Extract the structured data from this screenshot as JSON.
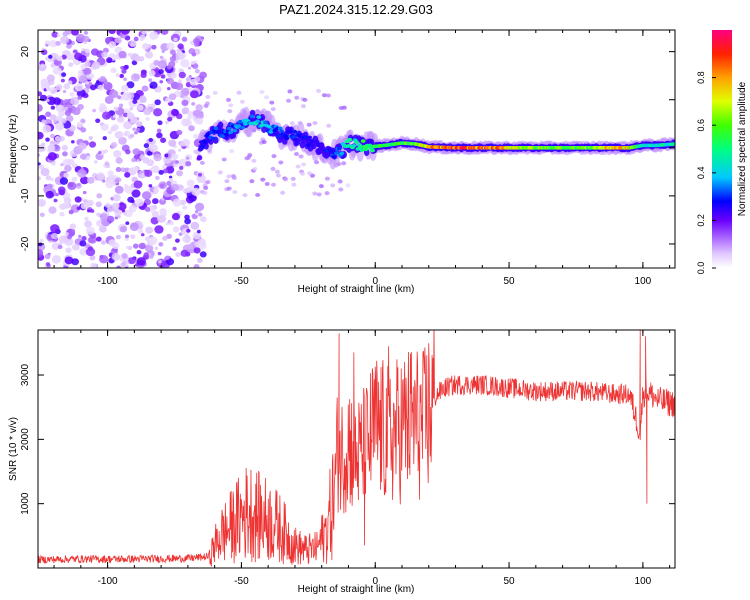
{
  "figure_title": "PAZ1.2024.315.12.29.G03",
  "chart_data": [
    {
      "type": "heatmap",
      "xlabel": "Height of straight line (km)",
      "ylabel": "Frequency (Hz)",
      "xlim": [
        -126,
        112
      ],
      "ylim": [
        -25,
        24.5
      ],
      "xticks": [
        -100,
        -50,
        0,
        50,
        100
      ],
      "yticks": [
        -20,
        -10,
        0,
        10,
        20
      ],
      "colorbar": {
        "label": "Normalized spectral amplitude",
        "range": [
          0,
          1
        ],
        "ticks": [
          0.0,
          0.2,
          0.4,
          0.6,
          0.8
        ]
      },
      "ridge": {
        "x": [
          -65,
          -60,
          -55,
          -50,
          -45,
          -40,
          -35,
          -30,
          -25,
          -20,
          -15,
          -10,
          -5,
          0,
          5,
          10,
          15,
          20,
          30,
          40,
          50,
          60,
          70,
          80,
          90,
          95,
          100,
          105,
          112
        ],
        "y": [
          1.0,
          3.0,
          3.5,
          5.0,
          6.0,
          4.5,
          3.0,
          2.5,
          1.5,
          -0.5,
          -1.5,
          0.8,
          0.5,
          0.3,
          0.6,
          1.0,
          0.8,
          0.2,
          0.0,
          0.0,
          0.0,
          0.0,
          0.0,
          0.0,
          0.0,
          0.0,
          0.5,
          0.5,
          0.8
        ],
        "amplitude": [
          0.25,
          0.3,
          0.3,
          0.35,
          0.4,
          0.35,
          0.3,
          0.3,
          0.25,
          0.25,
          0.3,
          0.45,
          0.5,
          0.55,
          0.55,
          0.55,
          0.6,
          0.75,
          0.85,
          0.85,
          0.75,
          0.6,
          0.6,
          0.6,
          0.8,
          0.7,
          0.4,
          0.45,
          0.45
        ]
      },
      "noise_region_x": [
        -126,
        -66
      ]
    },
    {
      "type": "line",
      "xlabel": "Height of straight line (km)",
      "ylabel": "SNR (10 * v/v)",
      "xlim": [
        -126,
        112
      ],
      "ylim": [
        0,
        3700
      ],
      "xticks": [
        -100,
        -50,
        0,
        50,
        100
      ],
      "yticks": [
        1000,
        2000,
        3000
      ],
      "color": "#ee3333",
      "series": [
        {
          "x": [
            -126,
            -110,
            -90,
            -70,
            -62,
            -58,
            -55,
            -50,
            -47,
            -44,
            -40,
            -35,
            -30,
            -26,
            -22,
            -18,
            -16,
            -15,
            -14,
            -13,
            -10,
            -7,
            -5,
            -3,
            0,
            3,
            6,
            10,
            14,
            18,
            20,
            23,
            26,
            30,
            40,
            50,
            60,
            70,
            80,
            90,
            95,
            97,
            99,
            100,
            101,
            103,
            106,
            112
          ],
          "y": [
            130,
            140,
            140,
            150,
            180,
            500,
            600,
            800,
            900,
            800,
            750,
            600,
            350,
            280,
            300,
            600,
            1000,
            1350,
            1900,
            1700,
            2000,
            1700,
            1800,
            1900,
            2200,
            2100,
            2050,
            2200,
            2300,
            2200,
            2450,
            2700,
            2800,
            2850,
            2850,
            2800,
            2750,
            2750,
            2750,
            2700,
            2700,
            2400,
            2100,
            2700,
            2750,
            2700,
            2600,
            2550
          ]
        }
      ],
      "spikes": [
        {
          "x": -13.5,
          "y": 3650
        },
        {
          "x": -8,
          "y": 3350
        },
        {
          "x": 5,
          "y": 3450
        },
        {
          "x": 99,
          "y": 3700
        },
        {
          "x": 101,
          "y": 3600
        },
        {
          "x": -4,
          "y": 350
        },
        {
          "x": 101.5,
          "y": 1000
        }
      ]
    }
  ]
}
